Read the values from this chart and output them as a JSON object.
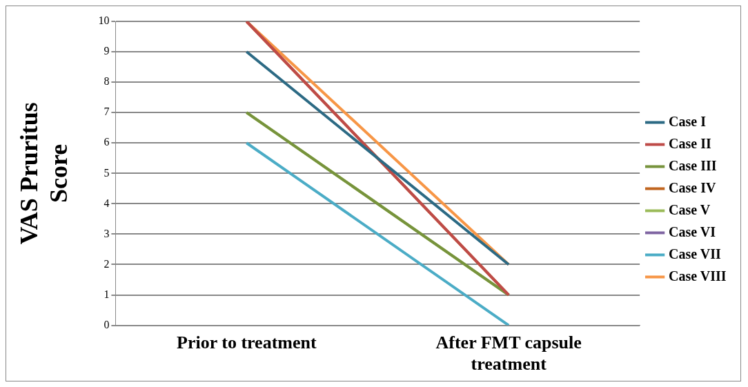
{
  "chart_data": {
    "type": "line",
    "ylabel": "VAS Pruritus Score",
    "categories": [
      "Prior to treatment",
      "After FMT capsule treatment"
    ],
    "series": [
      {
        "name": "Case I",
        "color": "#2c6a84",
        "values": [
          9,
          2
        ]
      },
      {
        "name": "Case II",
        "color": "#be4b48",
        "values": [
          10,
          1
        ]
      },
      {
        "name": "Case III",
        "color": "#77933c",
        "values": [
          7,
          1
        ]
      },
      {
        "name": "Case IV",
        "color": "#c0651f",
        "values": [
          10,
          1
        ]
      },
      {
        "name": "Case V",
        "color": "#9bbb59",
        "values": [
          7,
          1
        ]
      },
      {
        "name": "Case VI",
        "color": "#7f65a2",
        "values": [
          null,
          null
        ]
      },
      {
        "name": "Case VII",
        "color": "#4bacc6",
        "values": [
          6,
          0
        ]
      },
      {
        "name": "Case VIII",
        "color": "#f79646",
        "values": [
          10,
          2
        ]
      }
    ],
    "ylim": [
      0,
      10
    ],
    "yticks": [
      0,
      1,
      2,
      3,
      4,
      5,
      6,
      7,
      8,
      9,
      10
    ],
    "grid": "y",
    "legend": "right",
    "marker": "none",
    "line_style": "solid"
  }
}
